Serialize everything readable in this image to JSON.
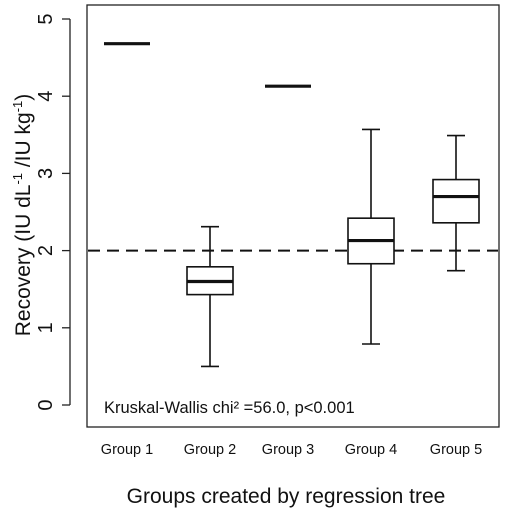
{
  "chart_data": {
    "type": "boxplot",
    "categories": [
      "Group 1",
      "Group 2",
      "Group 3",
      "Group 4",
      "Group 5"
    ],
    "boxes": [
      {
        "category": "Group 1",
        "median": 4.68
      },
      {
        "category": "Group 2",
        "whisker_low": 0.5,
        "q1": 1.43,
        "median": 1.6,
        "q3": 1.79,
        "whisker_high": 2.31
      },
      {
        "category": "Group 3",
        "median": 4.13
      },
      {
        "category": "Group 4",
        "whisker_low": 0.79,
        "q1": 1.83,
        "median": 2.13,
        "q3": 2.42,
        "whisker_high": 3.57
      },
      {
        "category": "Group 5",
        "whisker_low": 1.74,
        "q1": 2.36,
        "median": 2.7,
        "q3": 2.92,
        "whisker_high": 3.49
      }
    ],
    "reference_line": 2,
    "ylim": [
      0,
      5
    ],
    "yticks": [
      "0",
      "1",
      "2",
      "3",
      "4",
      "5"
    ],
    "xlabel": "Groups created by regression tree",
    "ylabel": {
      "base": "Recovery (IU dL",
      "exp1": "-1",
      "mid": " /IU kg",
      "exp2": "-1",
      "end": ")"
    },
    "annotation": "Kruskal-Wallis chi² =56.0, p<0.001",
    "grid": false,
    "legend": "none"
  }
}
